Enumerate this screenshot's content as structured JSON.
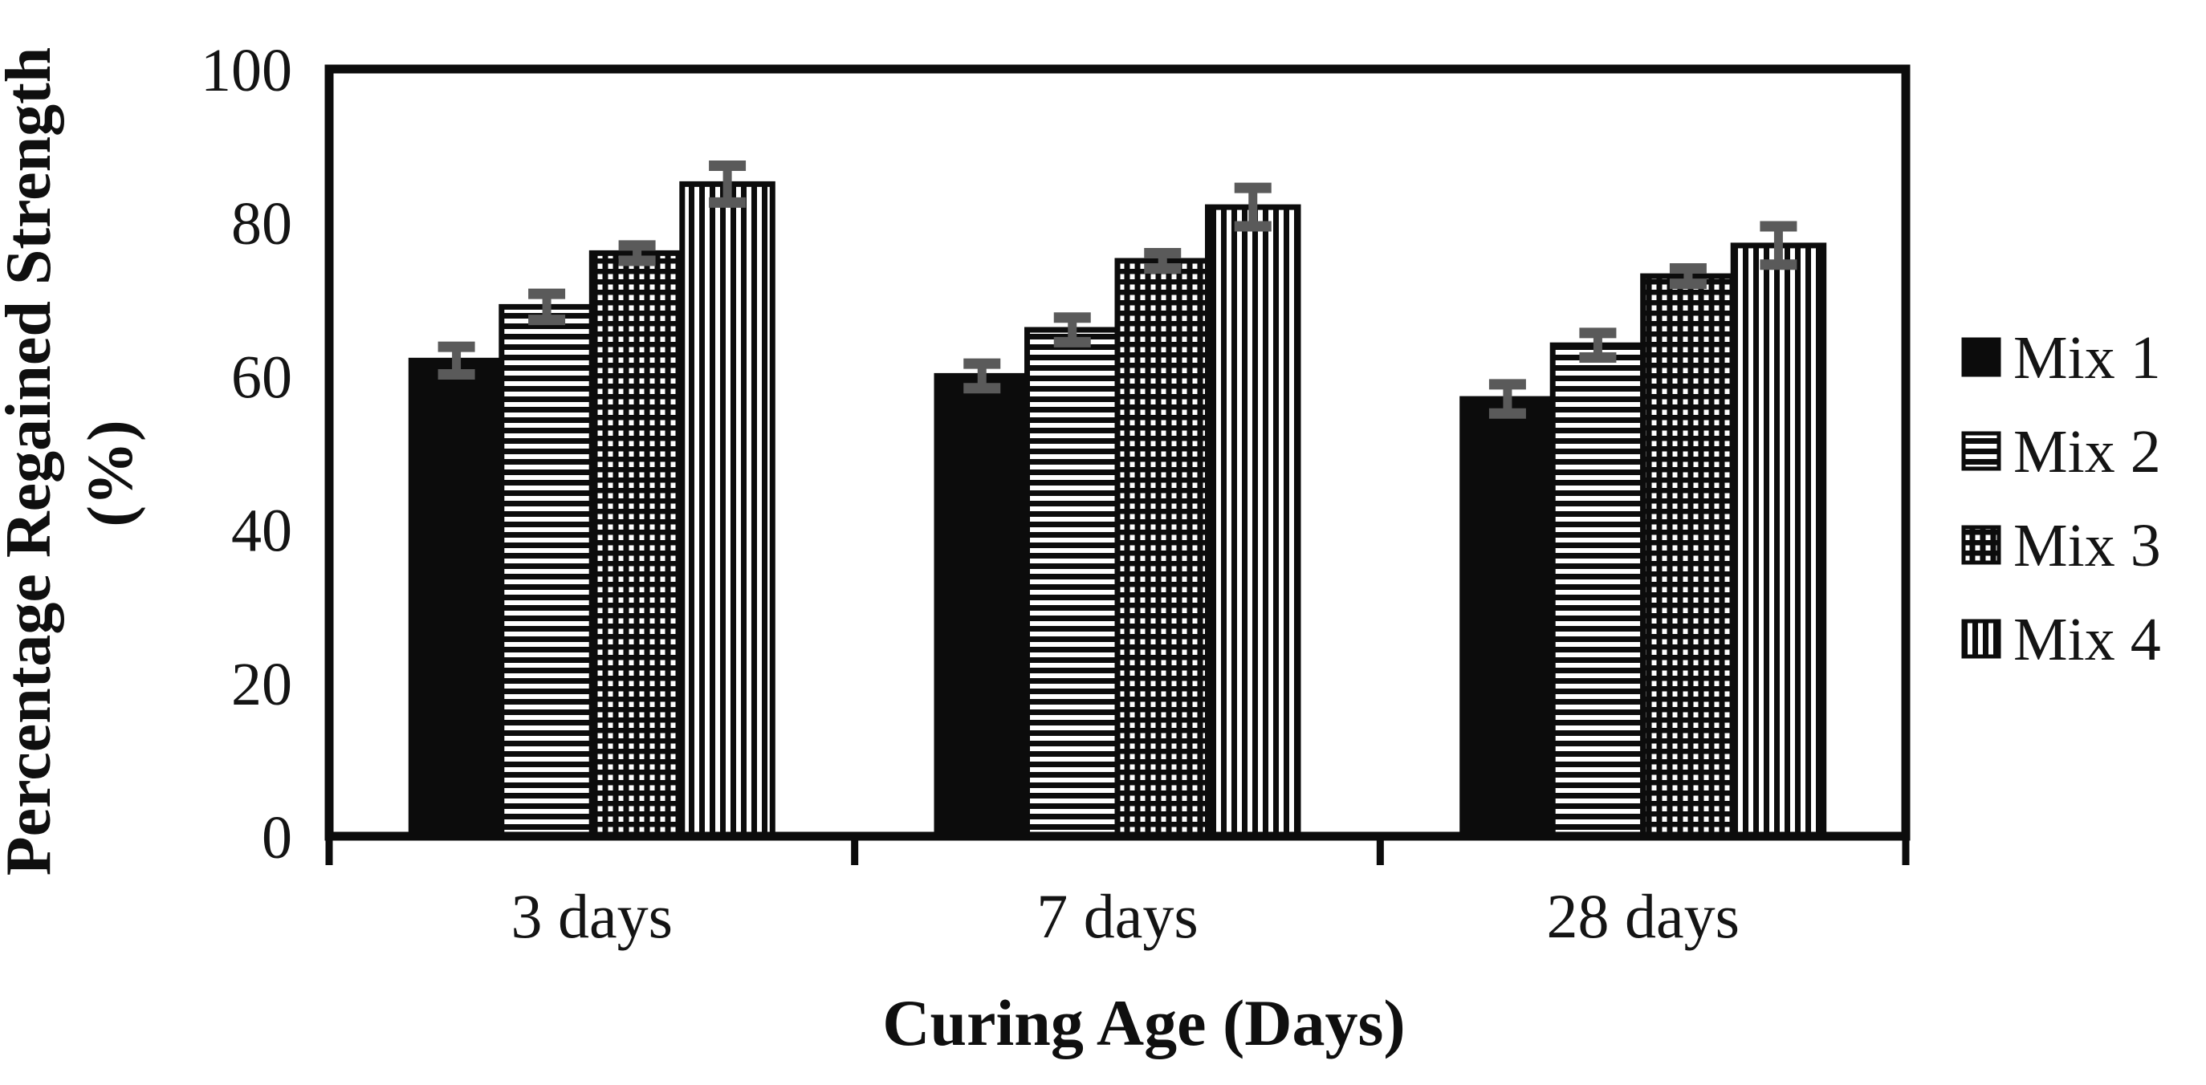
{
  "figure": {
    "background": "#ffffff",
    "text_color": "#141414",
    "bar_color": "#0c0c0c",
    "error_bar_color": "#5a5a5a"
  },
  "chart_data": {
    "type": "bar",
    "title": "",
    "xlabel": "Curing Age (Days)",
    "ylabel_line1": "Percentage Regained Strength",
    "ylabel_line2": "(%)",
    "categories": [
      "3 days",
      "7 days",
      "28 days"
    ],
    "series": [
      {
        "name": "Mix 1",
        "pattern": "solid-black",
        "values": [
          62,
          60,
          57
        ],
        "errors": [
          1.8,
          1.6,
          1.9
        ]
      },
      {
        "name": "Mix 2",
        "pattern": "horizontal-stripes",
        "values": [
          69,
          66,
          64
        ],
        "errors": [
          1.7,
          1.6,
          1.6
        ]
      },
      {
        "name": "Mix 3",
        "pattern": "dotted-grid",
        "values": [
          76,
          75,
          73
        ],
        "errors": [
          1.0,
          1.0,
          1.0
        ]
      },
      {
        "name": "Mix 4",
        "pattern": "vertical-stripes",
        "values": [
          85,
          82,
          77
        ],
        "errors": [
          2.4,
          2.5,
          2.5
        ]
      }
    ],
    "ylim": [
      0,
      100
    ],
    "yticks": [
      0,
      20,
      40,
      60,
      80,
      100
    ],
    "grid": false,
    "legend_position": "right",
    "error_bars": true
  }
}
